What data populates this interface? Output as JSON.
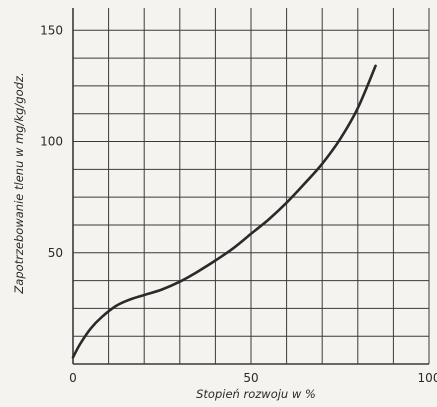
{
  "chart_data": {
    "type": "line",
    "title": "",
    "xlabel": "Stopień rozwoju w %",
    "ylabel": "Zapotrzebowanie tlenu w mg/kg/godz.",
    "xlim": [
      0,
      100
    ],
    "ylim": [
      0,
      160
    ],
    "grid": true,
    "x_ticks": [
      0,
      50,
      100
    ],
    "y_ticks": [
      50,
      100,
      150
    ],
    "x_grid_step": 10,
    "y_grid_step": 12.5,
    "series": [
      {
        "x": [
          0,
          2,
          5,
          8,
          12,
          16,
          20,
          25,
          30,
          35,
          40,
          45,
          50,
          55,
          60,
          65,
          70,
          75,
          80,
          85
        ],
        "y": [
          3,
          9,
          16,
          21,
          26,
          29,
          31,
          33.5,
          37,
          41.5,
          46.5,
          52,
          58.5,
          65,
          72.5,
          81,
          90,
          101,
          115,
          134
        ],
        "color": "#2a2a2a"
      }
    ]
  }
}
